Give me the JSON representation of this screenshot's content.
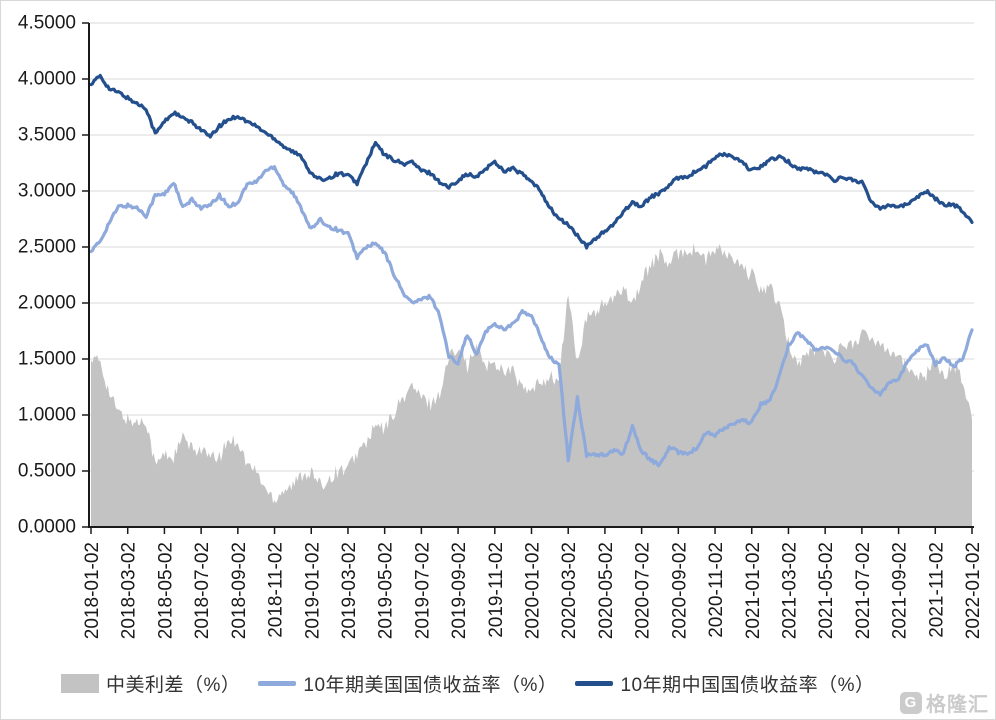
{
  "chart_data": {
    "type": "line",
    "title": "",
    "grid": true,
    "legend_position": "bottom",
    "ylim": [
      0,
      4.5
    ],
    "y_tick_labels": [
      "0.0000",
      "0.5000",
      "1.0000",
      "1.5000",
      "2.0000",
      "2.5000",
      "3.0000",
      "3.5000",
      "4.0000",
      "4.5000"
    ],
    "x_start": "2018-01-02",
    "x_end": "2022-01-02",
    "points_per_month": 2,
    "x_tick_labels": [
      "2018-01-02",
      "2018-03-02",
      "2018-05-02",
      "2018-07-02",
      "2018-09-02",
      "2018-11-02",
      "2019-01-02",
      "2019-03-02",
      "2019-05-02",
      "2019-07-02",
      "2019-09-02",
      "2019-11-02",
      "2020-01-02",
      "2020-03-02",
      "2020-05-02",
      "2020-07-02",
      "2020-09-02",
      "2020-11-02",
      "2021-01-02",
      "2021-03-02",
      "2021-05-02",
      "2021-07-02",
      "2021-09-02",
      "2021-11-02",
      "2022-01-02"
    ],
    "series": [
      {
        "name": "中美利差（%）",
        "type": "area",
        "color": "#c3c3c3",
        "values": [
          1.49,
          1.48,
          1.19,
          1.02,
          0.96,
          0.93,
          0.96,
          0.55,
          0.65,
          0.62,
          0.8,
          0.69,
          0.7,
          0.61,
          0.62,
          0.78,
          0.77,
          0.56,
          0.5,
          0.34,
          0.25,
          0.34,
          0.37,
          0.47,
          0.49,
          0.36,
          0.44,
          0.51,
          0.52,
          0.66,
          0.75,
          0.9,
          0.87,
          1.02,
          1.15,
          1.26,
          1.15,
          1.1,
          1.19,
          1.51,
          1.63,
          1.43,
          1.59,
          1.45,
          1.45,
          1.41,
          1.39,
          1.23,
          1.2,
          1.3,
          1.34,
          1.3,
          2.1,
          1.45,
          1.86,
          1.93,
          2.0,
          2.02,
          2.16,
          2.0,
          2.19,
          2.35,
          2.43,
          2.34,
          2.45,
          2.47,
          2.48,
          2.38,
          2.48,
          2.45,
          2.38,
          2.3,
          2.25,
          2.12,
          2.15,
          1.96,
          1.64,
          1.46,
          1.54,
          1.59,
          1.55,
          1.52,
          1.63,
          1.63,
          1.73,
          1.66,
          1.66,
          1.58,
          1.54,
          1.4,
          1.37,
          1.36,
          1.48,
          1.36,
          1.45,
          1.31,
          0.96
        ]
      },
      {
        "name": "10年期美国国债收益率（%）",
        "type": "line",
        "color": "#8ea9db",
        "values": [
          2.46,
          2.55,
          2.72,
          2.86,
          2.87,
          2.85,
          2.78,
          2.96,
          2.97,
          3.08,
          2.85,
          2.92,
          2.85,
          2.87,
          2.96,
          2.86,
          2.9,
          3.06,
          3.08,
          3.18,
          3.22,
          3.06,
          2.98,
          2.83,
          2.66,
          2.74,
          2.68,
          2.65,
          2.62,
          2.41,
          2.5,
          2.53,
          2.45,
          2.26,
          2.09,
          2.0,
          2.03,
          2.06,
          1.89,
          1.52,
          1.47,
          1.72,
          1.53,
          1.75,
          1.81,
          1.77,
          1.81,
          1.92,
          1.88,
          1.7,
          1.51,
          1.45,
          0.6,
          1.15,
          0.64,
          0.65,
          0.64,
          0.68,
          0.66,
          0.9,
          0.67,
          0.6,
          0.55,
          0.71,
          0.67,
          0.66,
          0.7,
          0.84,
          0.82,
          0.88,
          0.92,
          0.95,
          0.93,
          1.1,
          1.13,
          1.34,
          1.62,
          1.74,
          1.66,
          1.58,
          1.6,
          1.58,
          1.49,
          1.47,
          1.35,
          1.24,
          1.19,
          1.3,
          1.32,
          1.48,
          1.58,
          1.64,
          1.45,
          1.52,
          1.43,
          1.51,
          1.76
        ]
      },
      {
        "name": "10年期中国国债收益率（%）",
        "type": "line",
        "color": "#234f8d",
        "values": [
          3.95,
          4.03,
          3.91,
          3.88,
          3.83,
          3.78,
          3.74,
          3.51,
          3.62,
          3.7,
          3.65,
          3.61,
          3.55,
          3.48,
          3.58,
          3.64,
          3.67,
          3.62,
          3.58,
          3.52,
          3.47,
          3.4,
          3.35,
          3.3,
          3.15,
          3.1,
          3.12,
          3.16,
          3.14,
          3.07,
          3.25,
          3.43,
          3.32,
          3.28,
          3.24,
          3.26,
          3.18,
          3.16,
          3.08,
          3.03,
          3.1,
          3.15,
          3.12,
          3.2,
          3.26,
          3.18,
          3.2,
          3.15,
          3.08,
          3.0,
          2.85,
          2.75,
          2.7,
          2.6,
          2.5,
          2.58,
          2.64,
          2.7,
          2.82,
          2.9,
          2.86,
          2.95,
          2.98,
          3.05,
          3.12,
          3.13,
          3.18,
          3.22,
          3.3,
          3.33,
          3.3,
          3.25,
          3.18,
          3.22,
          3.28,
          3.3,
          3.26,
          3.2,
          3.2,
          3.17,
          3.15,
          3.1,
          3.12,
          3.1,
          3.08,
          2.9,
          2.85,
          2.88,
          2.86,
          2.88,
          2.95,
          3.0,
          2.93,
          2.88,
          2.88,
          2.82,
          2.72
        ]
      }
    ]
  },
  "colors": {
    "grid": "#d9d9d9",
    "axis": "#1a1a1a",
    "text": "#1a1a1a",
    "background": "#ffffff"
  },
  "watermark": {
    "logo": "G",
    "text": "格隆汇"
  }
}
